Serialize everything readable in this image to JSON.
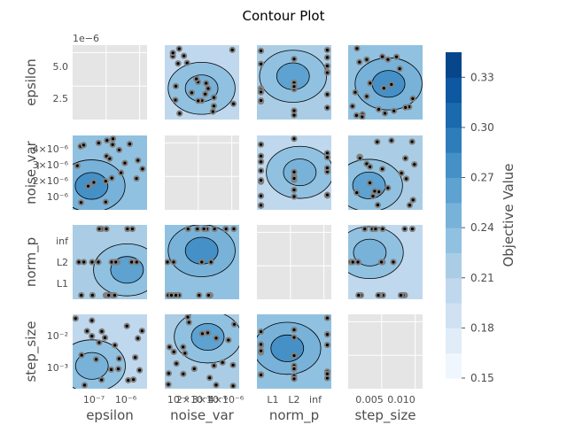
{
  "chart_data": {
    "type": "heatmap",
    "title": "Contour Plot",
    "variables": [
      "epsilon",
      "noise_var",
      "norm_p",
      "step_size"
    ],
    "tick_labels": {
      "epsilon": {
        "x": [
          "10⁻⁷",
          "10⁻⁶"
        ],
        "y": [
          "2.5",
          "5.0"
        ],
        "offset": "1e−6"
      },
      "noise_var": {
        "x": [
          "10⁻⁶",
          "2×10⁻⁶",
          "3×10⁻⁶",
          "4×10⁻⁶"
        ],
        "y": [
          "10⁻⁶",
          "2×10⁻⁶",
          "3×10⁻⁶",
          "4×10⁻⁶"
        ]
      },
      "norm_p": {
        "x": [
          "L1",
          "L2",
          "inf"
        ],
        "y": [
          "L1",
          "L2",
          "inf"
        ]
      },
      "step_size": {
        "x": [
          "0.005",
          "0.010"
        ],
        "y": [
          "10⁻³",
          "10⁻²"
        ]
      }
    },
    "colorbar": {
      "label": "Objective Value",
      "ticks": [
        0.15,
        0.18,
        0.21,
        0.24,
        0.27,
        0.3,
        0.33
      ],
      "range": [
        0.15,
        0.345
      ],
      "levels": 13
    },
    "diagonal_panels": "empty",
    "grid": true
  },
  "colors": {
    "panel_empty": "#e5e5e5",
    "point_edge": "#808080",
    "point_face": "#000000"
  }
}
